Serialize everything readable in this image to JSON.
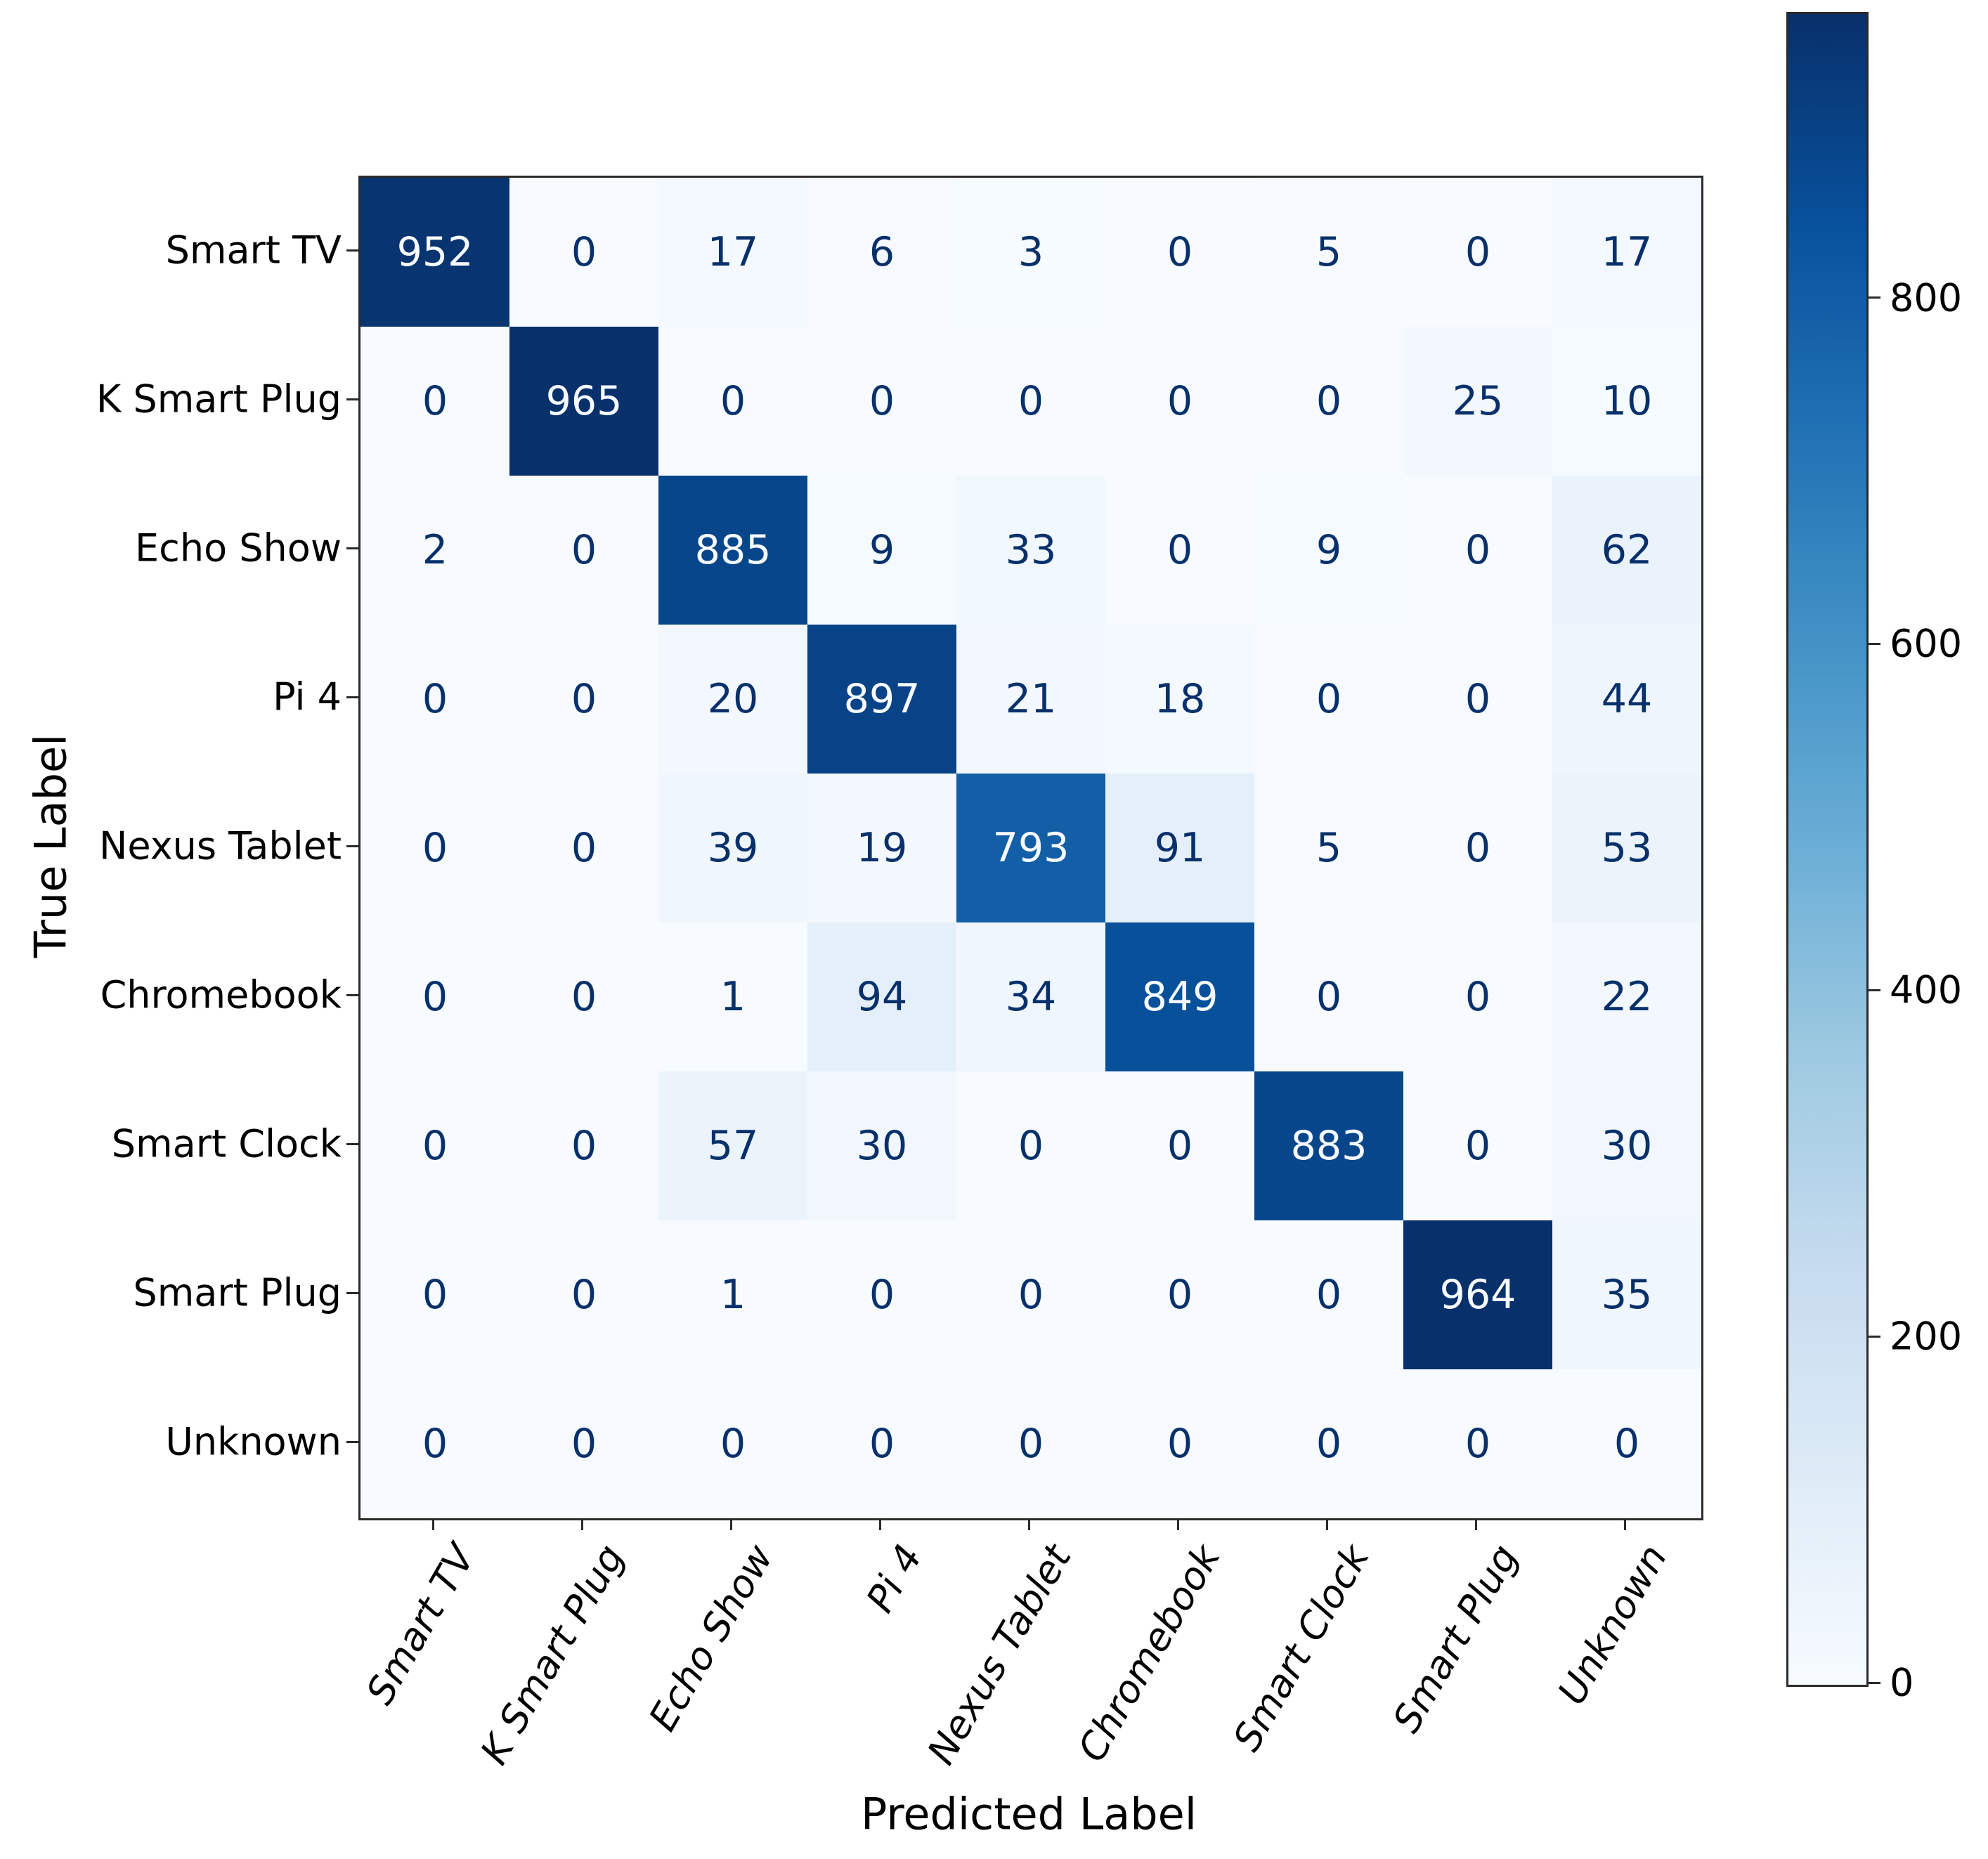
{
  "chart_data": {
    "type": "heatmap",
    "subtype": "confusion-matrix",
    "title": "",
    "xlabel": "Predicted Label",
    "ylabel": "True Label",
    "row_labels": [
      "Smart TV",
      "K Smart Plug",
      "Echo Show",
      "Pi 4",
      "Nexus Tablet",
      "Chromebook",
      "Smart Clock",
      "Smart Plug",
      "Unknown"
    ],
    "col_labels": [
      "Smart TV",
      "K Smart Plug",
      "Echo Show",
      "Pi 4",
      "Nexus Tablet",
      "Chromebook",
      "Smart Clock",
      "Smart Plug",
      "Unknown"
    ],
    "matrix": [
      [
        952,
        0,
        17,
        6,
        3,
        0,
        5,
        0,
        17
      ],
      [
        0,
        965,
        0,
        0,
        0,
        0,
        0,
        25,
        10
      ],
      [
        2,
        0,
        885,
        9,
        33,
        0,
        9,
        0,
        62
      ],
      [
        0,
        0,
        20,
        897,
        21,
        18,
        0,
        0,
        44
      ],
      [
        0,
        0,
        39,
        19,
        793,
        91,
        5,
        0,
        53
      ],
      [
        0,
        0,
        1,
        94,
        34,
        849,
        0,
        0,
        22
      ],
      [
        0,
        0,
        57,
        30,
        0,
        0,
        883,
        0,
        30
      ],
      [
        0,
        0,
        1,
        0,
        0,
        0,
        0,
        964,
        35
      ],
      [
        0,
        0,
        0,
        0,
        0,
        0,
        0,
        0,
        0
      ]
    ],
    "vmin": 0,
    "vmax": 965,
    "colormap": "Blues",
    "legend_position": "right-colorbar",
    "colorbar_ticks": [
      800,
      600,
      400,
      200,
      0
    ],
    "grid": false,
    "x_tick_rotation_deg": 60,
    "colors": {
      "cell_text_dark": "#08306b",
      "cell_text_light": "#f7fbff",
      "axis_spine": "#2b2b2b",
      "tick_label": "#000000",
      "background": "#ffffff"
    }
  }
}
